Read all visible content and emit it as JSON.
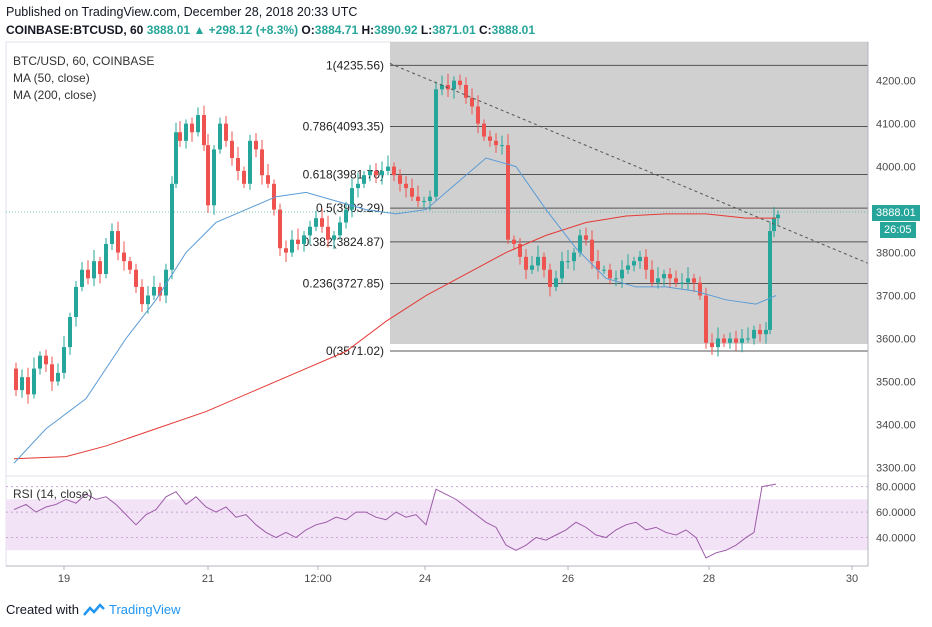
{
  "header": {
    "published": "Published on TradingView.com, December 28, 2018 20:33 UTC",
    "symbol": "COINBASE:BTCUSD, 60",
    "last": "3888.01",
    "change": "+298.12 (+8.3%)",
    "o_label": "O:",
    "o": "3884.71",
    "h_label": "H:",
    "h": "3890.92",
    "l_label": "L:",
    "l": "3871.01",
    "c_label": "C:",
    "c": "3888.01"
  },
  "legend": {
    "series": "BTC/USD, 60, COINBASE",
    "ma50": "MA (50, close)",
    "ma200": "MA (200, close)",
    "rsi": "RSI (14, close)"
  },
  "price_label": {
    "value": "3888.01",
    "countdown": "26:05"
  },
  "footer": {
    "created": "Created with",
    "brand": "TradingView"
  },
  "colors": {
    "up": "#26a69a",
    "down": "#ef5350",
    "ma50": "#5b9bd5",
    "ma200": "#e53935",
    "rsi": "#9c5ba8",
    "fib_zone": "#c8c8c8",
    "rsi_band": "#f3e3f7"
  },
  "chart_data": {
    "type": "candlestick",
    "y_ticks": [
      4200,
      4100,
      4000,
      3900,
      3800,
      3700,
      3600,
      3500,
      3400,
      3300
    ],
    "y_tick_labels": [
      "4200.00",
      "4100.00",
      "4000.00",
      "3900.00",
      "3800.00",
      "3700.00",
      "3600.00",
      "3500.00",
      "3400.00",
      "3300.00"
    ],
    "ylim": [
      3280,
      4290
    ],
    "x_tick_labels": [
      "19",
      "21",
      "12:00",
      "24",
      "26",
      "28",
      "30"
    ],
    "fib_levels": [
      {
        "label": "1(4235.56)",
        "value": 4235.56
      },
      {
        "label": "0.786(4093.35)",
        "value": 4093.35
      },
      {
        "label": "0.618(3981.70)",
        "value": 3981.7
      },
      {
        "label": "0.5(3903.29)",
        "value": 3903.29
      },
      {
        "label": "0.382(3824.87)",
        "value": 3824.87
      },
      {
        "label": "0.236(3727.85)",
        "value": 3727.85
      },
      {
        "label": "0(3571.02)",
        "value": 3571.02
      }
    ],
    "close_path": [
      [
        0,
        3530
      ],
      [
        6,
        3480
      ],
      [
        12,
        3510
      ],
      [
        18,
        3470
      ],
      [
        24,
        3530
      ],
      [
        30,
        3560
      ],
      [
        36,
        3540
      ],
      [
        42,
        3500
      ],
      [
        48,
        3520
      ],
      [
        54,
        3580
      ],
      [
        60,
        3650
      ],
      [
        66,
        3720
      ],
      [
        72,
        3760
      ],
      [
        78,
        3740
      ],
      [
        84,
        3780
      ],
      [
        90,
        3750
      ],
      [
        96,
        3820
      ],
      [
        102,
        3850
      ],
      [
        108,
        3800
      ],
      [
        114,
        3780
      ],
      [
        120,
        3760
      ],
      [
        126,
        3720
      ],
      [
        132,
        3680
      ],
      [
        138,
        3700
      ],
      [
        144,
        3720
      ],
      [
        150,
        3700
      ],
      [
        156,
        3760
      ],
      [
        162,
        3960
      ],
      [
        166,
        4080
      ],
      [
        170,
        4060
      ],
      [
        176,
        4100
      ],
      [
        182,
        4080
      ],
      [
        188,
        4120
      ],
      [
        194,
        4050
      ],
      [
        198,
        3910
      ],
      [
        204,
        4040
      ],
      [
        210,
        4100
      ],
      [
        216,
        4060
      ],
      [
        222,
        4020
      ],
      [
        228,
        3990
      ],
      [
        234,
        3960
      ],
      [
        240,
        4060
      ],
      [
        246,
        4040
      ],
      [
        252,
        3980
      ],
      [
        258,
        3960
      ],
      [
        264,
        3900
      ],
      [
        270,
        3810
      ],
      [
        276,
        3800
      ],
      [
        282,
        3830
      ],
      [
        288,
        3820
      ],
      [
        294,
        3840
      ],
      [
        300,
        3860
      ],
      [
        306,
        3880
      ],
      [
        312,
        3860
      ],
      [
        318,
        3830
      ],
      [
        324,
        3840
      ],
      [
        330,
        3870
      ],
      [
        336,
        3900
      ],
      [
        342,
        3950
      ],
      [
        348,
        3960
      ],
      [
        354,
        3980
      ],
      [
        360,
        3990
      ],
      [
        366,
        3980
      ],
      [
        372,
        3990
      ],
      [
        378,
        4000
      ],
      [
        384,
        3980
      ],
      [
        390,
        3960
      ],
      [
        396,
        3950
      ],
      [
        402,
        3930
      ],
      [
        408,
        3920
      ],
      [
        414,
        3920
      ],
      [
        420,
        3930
      ],
      [
        426,
        4180
      ],
      [
        432,
        4190
      ],
      [
        438,
        4180
      ],
      [
        444,
        4200
      ],
      [
        450,
        4190
      ],
      [
        456,
        4160
      ],
      [
        462,
        4140
      ],
      [
        468,
        4100
      ],
      [
        474,
        4070
      ],
      [
        480,
        4060
      ],
      [
        486,
        4050
      ],
      [
        492,
        4050
      ],
      [
        498,
        3830
      ],
      [
        504,
        3820
      ],
      [
        510,
        3790
      ],
      [
        516,
        3760
      ],
      [
        522,
        3770
      ],
      [
        528,
        3790
      ],
      [
        534,
        3760
      ],
      [
        540,
        3720
      ],
      [
        546,
        3740
      ],
      [
        552,
        3780
      ],
      [
        558,
        3780
      ],
      [
        564,
        3800
      ],
      [
        570,
        3840
      ],
      [
        576,
        3830
      ],
      [
        582,
        3780
      ],
      [
        588,
        3760
      ],
      [
        594,
        3760
      ],
      [
        600,
        3740
      ],
      [
        606,
        3740
      ],
      [
        612,
        3760
      ],
      [
        618,
        3770
      ],
      [
        624,
        3780
      ],
      [
        630,
        3790
      ],
      [
        636,
        3760
      ],
      [
        642,
        3730
      ],
      [
        648,
        3740
      ],
      [
        654,
        3750
      ],
      [
        660,
        3740
      ],
      [
        666,
        3730
      ],
      [
        672,
        3730
      ],
      [
        678,
        3740
      ],
      [
        684,
        3730
      ],
      [
        690,
        3700
      ],
      [
        696,
        3590
      ],
      [
        702,
        3580
      ],
      [
        708,
        3600
      ],
      [
        714,
        3590
      ],
      [
        720,
        3600
      ],
      [
        726,
        3590
      ],
      [
        732,
        3600
      ],
      [
        738,
        3600
      ],
      [
        744,
        3620
      ],
      [
        750,
        3610
      ],
      [
        756,
        3620
      ],
      [
        760,
        3850
      ],
      [
        764,
        3880
      ],
      [
        768,
        3888
      ]
    ],
    "ma50": [
      [
        8,
        3310
      ],
      [
        40,
        3390
      ],
      [
        80,
        3460
      ],
      [
        120,
        3600
      ],
      [
        150,
        3690
      ],
      [
        180,
        3800
      ],
      [
        210,
        3870
      ],
      [
        240,
        3900
      ],
      [
        270,
        3930
      ],
      [
        300,
        3940
      ],
      [
        330,
        3920
      ],
      [
        360,
        3900
      ],
      [
        390,
        3890
      ],
      [
        420,
        3900
      ],
      [
        450,
        3960
      ],
      [
        480,
        4020
      ],
      [
        510,
        4000
      ],
      [
        540,
        3900
      ],
      [
        570,
        3810
      ],
      [
        600,
        3740
      ],
      [
        630,
        3720
      ],
      [
        660,
        3720
      ],
      [
        690,
        3710
      ],
      [
        720,
        3690
      ],
      [
        750,
        3680
      ],
      [
        770,
        3700
      ]
    ],
    "ma200": [
      [
        8,
        3320
      ],
      [
        60,
        3325
      ],
      [
        100,
        3350
      ],
      [
        150,
        3390
      ],
      [
        200,
        3430
      ],
      [
        250,
        3480
      ],
      [
        300,
        3530
      ],
      [
        340,
        3570
      ],
      [
        380,
        3640
      ],
      [
        420,
        3700
      ],
      [
        460,
        3750
      ],
      [
        500,
        3800
      ],
      [
        540,
        3840
      ],
      [
        580,
        3870
      ],
      [
        620,
        3885
      ],
      [
        660,
        3890
      ],
      [
        700,
        3890
      ],
      [
        740,
        3880
      ],
      [
        770,
        3880
      ]
    ],
    "trendline": [
      [
        390,
        4240
      ],
      [
        868,
        3775
      ]
    ],
    "rsi_ticks": [
      "80.0000",
      "60.0000",
      "40.0000"
    ],
    "rsi_band": [
      30,
      70
    ],
    "rsi": [
      [
        8,
        62
      ],
      [
        20,
        66
      ],
      [
        30,
        60
      ],
      [
        40,
        64
      ],
      [
        50,
        66
      ],
      [
        60,
        70
      ],
      [
        70,
        67
      ],
      [
        80,
        74
      ],
      [
        90,
        70
      ],
      [
        100,
        72
      ],
      [
        110,
        66
      ],
      [
        120,
        58
      ],
      [
        130,
        50
      ],
      [
        140,
        58
      ],
      [
        150,
        62
      ],
      [
        160,
        72
      ],
      [
        170,
        76
      ],
      [
        180,
        66
      ],
      [
        190,
        72
      ],
      [
        200,
        64
      ],
      [
        210,
        60
      ],
      [
        220,
        64
      ],
      [
        230,
        56
      ],
      [
        240,
        58
      ],
      [
        250,
        50
      ],
      [
        260,
        44
      ],
      [
        270,
        40
      ],
      [
        280,
        44
      ],
      [
        290,
        40
      ],
      [
        300,
        46
      ],
      [
        310,
        50
      ],
      [
        320,
        52
      ],
      [
        330,
        56
      ],
      [
        340,
        54
      ],
      [
        350,
        60
      ],
      [
        360,
        60
      ],
      [
        370,
        56
      ],
      [
        380,
        54
      ],
      [
        390,
        60
      ],
      [
        400,
        56
      ],
      [
        410,
        58
      ],
      [
        420,
        50
      ],
      [
        430,
        78
      ],
      [
        440,
        74
      ],
      [
        450,
        70
      ],
      [
        460,
        64
      ],
      [
        470,
        58
      ],
      [
        480,
        52
      ],
      [
        490,
        48
      ],
      [
        500,
        34
      ],
      [
        510,
        30
      ],
      [
        520,
        34
      ],
      [
        530,
        40
      ],
      [
        540,
        38
      ],
      [
        550,
        42
      ],
      [
        560,
        46
      ],
      [
        570,
        52
      ],
      [
        580,
        48
      ],
      [
        590,
        42
      ],
      [
        600,
        40
      ],
      [
        610,
        46
      ],
      [
        620,
        50
      ],
      [
        630,
        52
      ],
      [
        640,
        46
      ],
      [
        650,
        48
      ],
      [
        660,
        44
      ],
      [
        670,
        42
      ],
      [
        680,
        46
      ],
      [
        690,
        40
      ],
      [
        700,
        24
      ],
      [
        710,
        28
      ],
      [
        720,
        30
      ],
      [
        730,
        34
      ],
      [
        740,
        40
      ],
      [
        748,
        44
      ],
      [
        756,
        80
      ],
      [
        770,
        82
      ]
    ]
  }
}
